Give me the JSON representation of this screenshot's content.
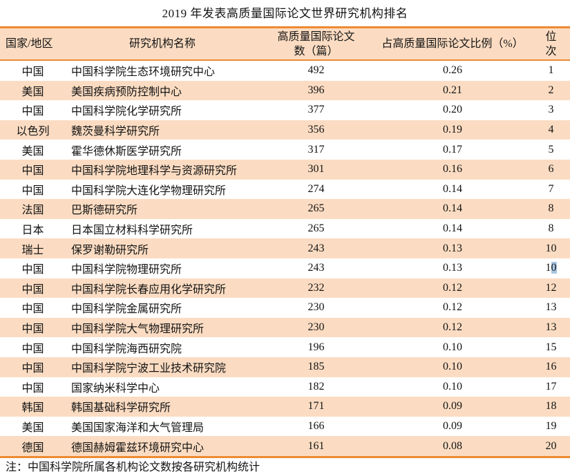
{
  "page": {
    "title": "2019 年发表高质量国际论文世界研究机构排名",
    "note": "注：中国科学院所属各机构论文数按各研究机构统计"
  },
  "colors": {
    "accent_orange": "#ED8A33",
    "band_peach": "#FBDCC2",
    "selection_blue": "#A8C6E4",
    "text": "#141414",
    "background": "#FFFFFF"
  },
  "table": {
    "columns": [
      {
        "key": "country",
        "label": "国家/地区"
      },
      {
        "key": "institution",
        "label": "研究机构名称"
      },
      {
        "key": "papers",
        "label": "高质量国际论文数（篇）"
      },
      {
        "key": "ratio",
        "label": "占高质量国际论文比例（%）"
      },
      {
        "key": "rank",
        "label": "位次"
      }
    ],
    "rows": [
      {
        "country": "中国",
        "institution": "中国科学院生态环境研究中心",
        "papers": "492",
        "ratio": "0.26",
        "rank": "1"
      },
      {
        "country": "美国",
        "institution": "美国疾病预防控制中心",
        "papers": "396",
        "ratio": "0.21",
        "rank": "2"
      },
      {
        "country": "中国",
        "institution": "中国科学院化学研究所",
        "papers": "377",
        "ratio": "0.20",
        "rank": "3"
      },
      {
        "country": "以色列",
        "institution": "魏茨曼科学研究所",
        "papers": "356",
        "ratio": "0.19",
        "rank": "4"
      },
      {
        "country": "美国",
        "institution": "霍华德休斯医学研究所",
        "papers": "317",
        "ratio": "0.17",
        "rank": "5"
      },
      {
        "country": "中国",
        "institution": "中国科学院地理科学与资源研究所",
        "papers": "301",
        "ratio": "0.16",
        "rank": "6"
      },
      {
        "country": "中国",
        "institution": "中国科学院大连化学物理研究所",
        "papers": "274",
        "ratio": "0.14",
        "rank": "7"
      },
      {
        "country": "法国",
        "institution": "巴斯德研究所",
        "papers": "265",
        "ratio": "0.14",
        "rank": "8"
      },
      {
        "country": "日本",
        "institution": "日本国立材料科学研究所",
        "papers": "265",
        "ratio": "0.14",
        "rank": "8"
      },
      {
        "country": "瑞士",
        "institution": "保罗谢勒研究所",
        "papers": "243",
        "ratio": "0.13",
        "rank": "10"
      },
      {
        "country": "中国",
        "institution": "中国科学院物理研究所",
        "papers": "243",
        "ratio": "0.13",
        "rank": "10",
        "rank_selection": "0"
      },
      {
        "country": "中国",
        "institution": "中国科学院长春应用化学研究所",
        "papers": "232",
        "ratio": "0.12",
        "rank": "12"
      },
      {
        "country": "中国",
        "institution": "中国科学院金属研究所",
        "papers": "230",
        "ratio": "0.12",
        "rank": "13"
      },
      {
        "country": "中国",
        "institution": "中国科学院大气物理研究所",
        "papers": "230",
        "ratio": "0.12",
        "rank": "13"
      },
      {
        "country": "中国",
        "institution": "中国科学院海西研究院",
        "papers": "196",
        "ratio": "0.10",
        "rank": "15"
      },
      {
        "country": "中国",
        "institution": "中国科学院宁波工业技术研究院",
        "papers": "185",
        "ratio": "0.10",
        "rank": "16"
      },
      {
        "country": "中国",
        "institution": "国家纳米科学中心",
        "papers": "182",
        "ratio": "0.10",
        "rank": "17"
      },
      {
        "country": "韩国",
        "institution": "韩国基础科学研究所",
        "papers": "171",
        "ratio": "0.09",
        "rank": "18"
      },
      {
        "country": "美国",
        "institution": "美国国家海洋和大气管理局",
        "papers": "166",
        "ratio": "0.09",
        "rank": "19"
      },
      {
        "country": "德国",
        "institution": "德国赫姆霍兹环境研究中心",
        "papers": "161",
        "ratio": "0.08",
        "rank": "20"
      }
    ]
  }
}
